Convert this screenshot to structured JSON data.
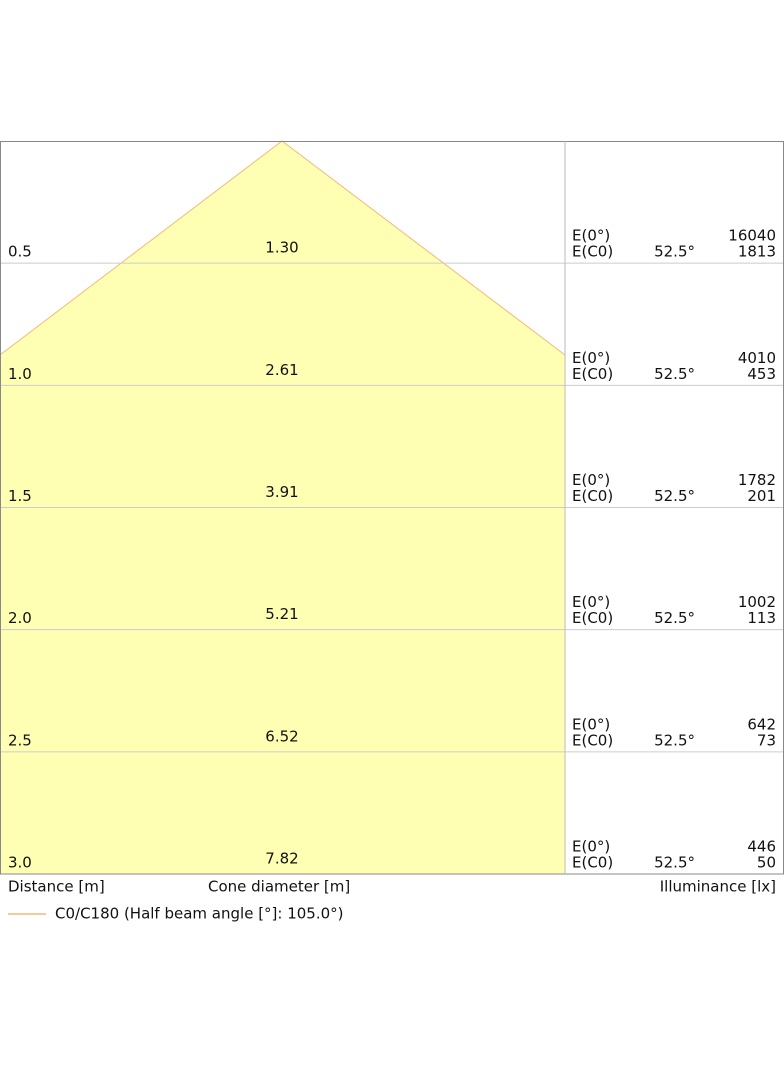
{
  "rows": [
    {
      "distance": "0.5",
      "diameter": "1.30",
      "e0_label": "E(0°)",
      "e0": "16040",
      "ec0_label": "E(C0)",
      "angle": "52.5°",
      "ec0": "1813"
    },
    {
      "distance": "1.0",
      "diameter": "2.61",
      "e0_label": "E(0°)",
      "e0": "4010",
      "ec0_label": "E(C0)",
      "angle": "52.5°",
      "ec0": "453"
    },
    {
      "distance": "1.5",
      "diameter": "3.91",
      "e0_label": "E(0°)",
      "e0": "1782",
      "ec0_label": "E(C0)",
      "angle": "52.5°",
      "ec0": "201"
    },
    {
      "distance": "2.0",
      "diameter": "5.21",
      "e0_label": "E(0°)",
      "e0": "1002",
      "ec0_label": "E(C0)",
      "angle": "52.5°",
      "ec0": "113"
    },
    {
      "distance": "2.5",
      "diameter": "6.52",
      "e0_label": "E(0°)",
      "e0": "642",
      "ec0_label": "E(C0)",
      "angle": "52.5°",
      "ec0": "73"
    },
    {
      "distance": "3.0",
      "diameter": "7.82",
      "e0_label": "E(0°)",
      "e0": "446",
      "ec0_label": "E(C0)",
      "angle": "52.5°",
      "ec0": "50"
    }
  ],
  "footer": {
    "distance": "Distance [m]",
    "diameter": "Cone diameter [m]",
    "illuminance": "Illuminance [lx]"
  },
  "legend": {
    "label": "C0/C180 (Half beam angle [°]: 105.0°)"
  }
}
